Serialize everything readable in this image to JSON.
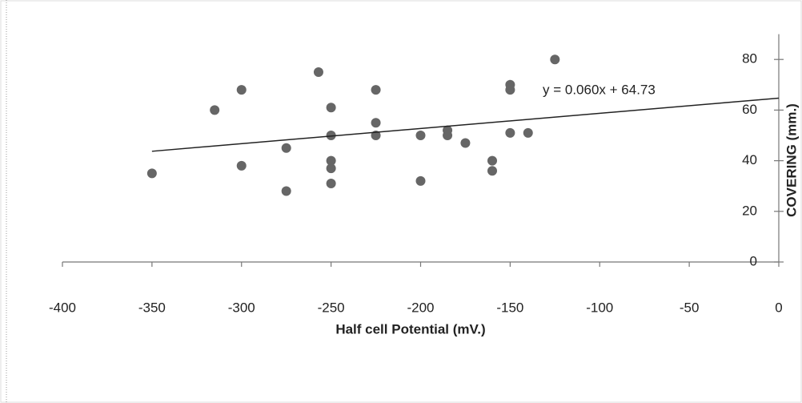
{
  "chart_data": {
    "type": "scatter",
    "x_label": "Half cell Potential (mV.)",
    "y_label": "COVERING (mm.)",
    "annotation": "y = 0.060x + 64.73",
    "color": "#666666",
    "x": [
      -350,
      -315,
      -300,
      -300,
      -275,
      -275,
      -257,
      -250,
      -250,
      -250,
      -250,
      -250,
      -225,
      -225,
      -225,
      -200,
      -200,
      -185,
      -185,
      -175,
      -160,
      -160,
      -150,
      -150,
      -150,
      -140,
      -125
    ],
    "values": [
      35,
      60,
      68,
      38,
      45,
      28,
      75,
      61,
      50,
      40,
      37,
      31,
      68,
      55,
      50,
      50,
      32,
      52,
      50,
      47,
      40,
      36,
      70,
      68,
      51,
      51,
      80
    ],
    "trendline": {
      "x": [
        -350,
        0
      ],
      "values": [
        43.73,
        64.73
      ],
      "color": "#222222"
    },
    "xlim": [
      -400,
      0
    ],
    "xticks": [
      -400,
      -350,
      -300,
      -250,
      -200,
      -150,
      -100,
      -50,
      0
    ],
    "ylim": [
      0,
      90
    ],
    "yticks": [
      0,
      20,
      40,
      60,
      80
    ]
  }
}
